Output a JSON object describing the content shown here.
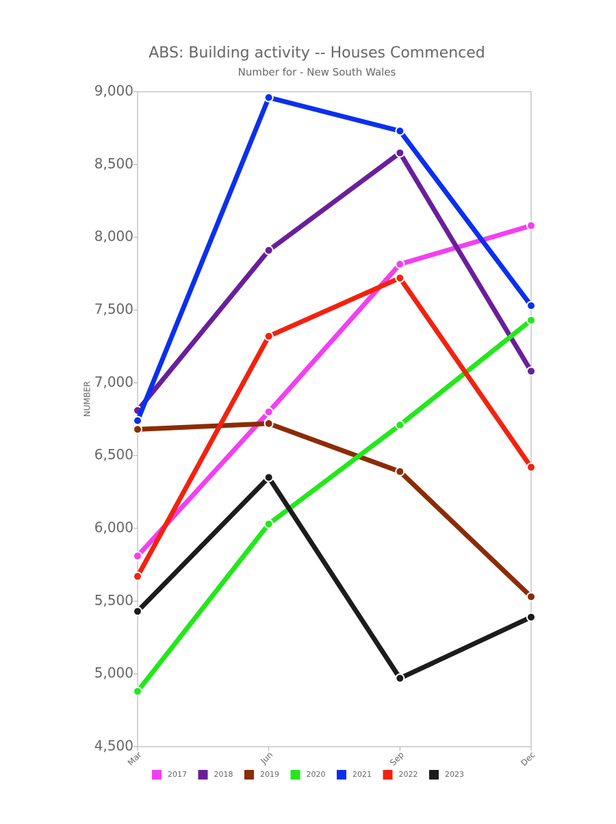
{
  "chart_data": {
    "type": "line",
    "title": "ABS: Building activity -- Houses Commenced",
    "subtitle": "Number for - New South Wales",
    "y_label": "NUMBER",
    "categories": [
      "Mar",
      "Jun",
      "Sep",
      "Dec"
    ],
    "ylim": [
      4500,
      9000
    ],
    "yticks": [
      {
        "value": 4500,
        "label": "4,500"
      },
      {
        "value": 5000,
        "label": "5,000"
      },
      {
        "value": 5500,
        "label": "5,500"
      },
      {
        "value": 6000,
        "label": "6,000"
      },
      {
        "value": 6500,
        "label": "6,500"
      },
      {
        "value": 7000,
        "label": "7,000"
      },
      {
        "value": 7500,
        "label": "7,500"
      },
      {
        "value": 8000,
        "label": "8,000"
      },
      {
        "value": 8500,
        "label": "8,500"
      },
      {
        "value": 9000,
        "label": "9,000"
      }
    ],
    "grid": false,
    "legend": "bottom",
    "series": [
      {
        "name": "2017",
        "color": "#f23ff2",
        "values": [
          5810,
          6800,
          7815,
          8080
        ]
      },
      {
        "name": "2018",
        "color": "#6a1f9a",
        "values": [
          6810,
          7910,
          8580,
          7080
        ]
      },
      {
        "name": "2019",
        "color": "#8b2c04",
        "values": [
          6680,
          6720,
          6390,
          5530
        ]
      },
      {
        "name": "2020",
        "color": "#22e81a",
        "values": [
          4880,
          6030,
          6710,
          7430
        ]
      },
      {
        "name": "2021",
        "color": "#0b2ff0",
        "values": [
          6740,
          8960,
          8730,
          7530
        ]
      },
      {
        "name": "2022",
        "color": "#f2220f",
        "values": [
          5670,
          7320,
          7720,
          6420
        ]
      },
      {
        "name": "2023",
        "color": "#1c1c1c",
        "values": [
          5430,
          6350,
          4970,
          5390
        ]
      }
    ]
  }
}
